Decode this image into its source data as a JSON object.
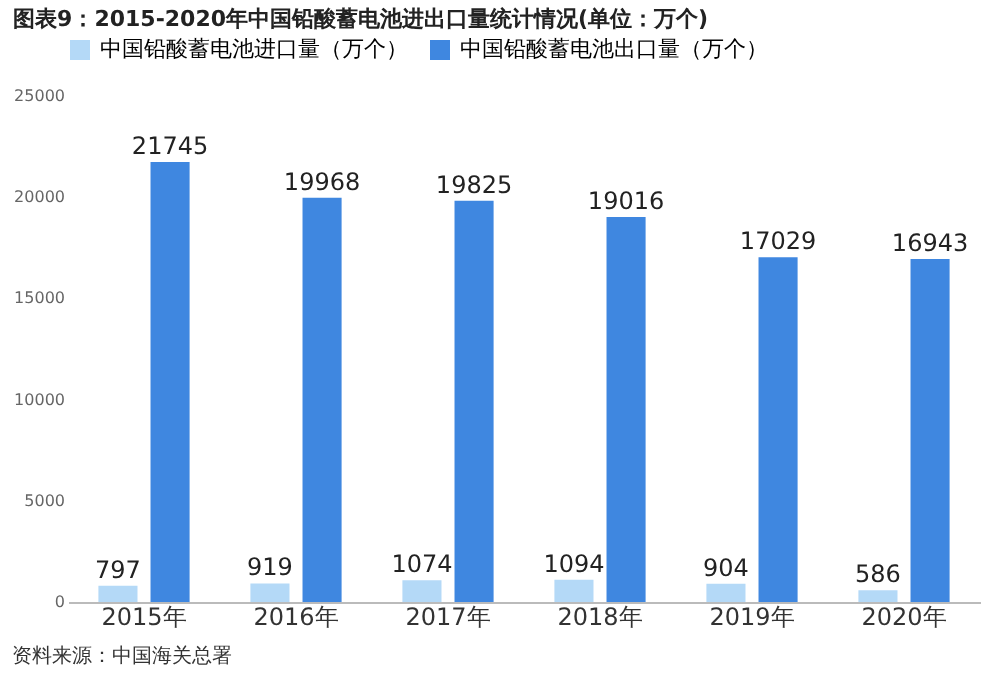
{
  "chart_data": {
    "type": "bar",
    "title": "图表9：2015-2020年中国铅酸蓄电池进出口量统计情况(单位：万个)",
    "categories": [
      "2015年",
      "2016年",
      "2017年",
      "2018年",
      "2019年",
      "2020年"
    ],
    "series": [
      {
        "name": "中国铅酸蓄电池进口量（万个）",
        "color": "#b4d9f7",
        "values": [
          797,
          919,
          1074,
          1094,
          904,
          586
        ]
      },
      {
        "name": "中国铅酸蓄电池出口量（万个）",
        "color": "#3f87e0",
        "values": [
          21745,
          19968,
          19825,
          19016,
          17029,
          16943
        ]
      }
    ],
    "ylim": [
      0,
      25000
    ],
    "yticks": [
      0,
      5000,
      10000,
      15000,
      20000,
      25000
    ],
    "data_labels": true,
    "legend": "top",
    "grid": false,
    "annotations": [
      "资料来源：中国海关总署"
    ]
  }
}
